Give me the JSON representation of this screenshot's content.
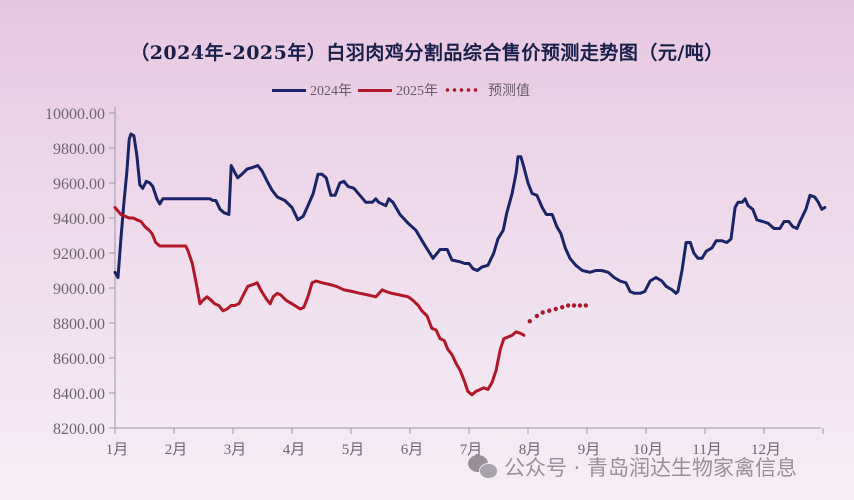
{
  "title": "（2024年-2025年）白羽肉鸡分割品综合售价预测走势图（元/吨）",
  "legend": [
    {
      "label": "2024年",
      "color": "#1a2466",
      "style": "solid"
    },
    {
      "label": "2025年",
      "color": "#b0182a",
      "style": "solid"
    },
    {
      "label": "预测值",
      "color": "#a8182a",
      "style": "dotted"
    }
  ],
  "watermark": "公众号 · 青岛润达生物家禽信息",
  "chart_data": {
    "type": "line",
    "title": "（2024年-2025年）白羽肉鸡分割品综合售价预测走势图（元/吨）",
    "xlabel": "",
    "ylabel": "元/吨",
    "ylim": [
      8200,
      10000
    ],
    "yticks": [
      "10000.00",
      "9800.00",
      "9600.00",
      "9400.00",
      "9200.00",
      "9000.00",
      "8800.00",
      "8600.00",
      "8400.00",
      "8200.00"
    ],
    "yticks_values": [
      10000,
      9800,
      9600,
      9400,
      9200,
      9000,
      8800,
      8600,
      8400,
      8200
    ],
    "categories": [
      "1月",
      "2月",
      "3月",
      "4月",
      "5月",
      "6月",
      "7月",
      "8月",
      "9月",
      "10月",
      "11月",
      "12月"
    ],
    "xlim": [
      1,
      13
    ],
    "grid": false,
    "legend_position": "top",
    "series": [
      {
        "name": "2024年",
        "color": "#1a2466",
        "style": "solid",
        "points": [
          [
            1.0,
            9090
          ],
          [
            1.05,
            9060
          ],
          [
            1.1,
            9280
          ],
          [
            1.15,
            9480
          ],
          [
            1.2,
            9660
          ],
          [
            1.24,
            9850
          ],
          [
            1.27,
            9880
          ],
          [
            1.32,
            9870
          ],
          [
            1.37,
            9760
          ],
          [
            1.42,
            9590
          ],
          [
            1.47,
            9570
          ],
          [
            1.53,
            9610
          ],
          [
            1.59,
            9600
          ],
          [
            1.64,
            9580
          ],
          [
            1.71,
            9510
          ],
          [
            1.76,
            9480
          ],
          [
            1.81,
            9510
          ],
          [
            2.61,
            9510
          ],
          [
            2.66,
            9500
          ],
          [
            2.71,
            9500
          ],
          [
            2.78,
            9450
          ],
          [
            2.85,
            9430
          ],
          [
            2.93,
            9420
          ],
          [
            2.97,
            9700
          ],
          [
            3.03,
            9660
          ],
          [
            3.08,
            9630
          ],
          [
            3.15,
            9650
          ],
          [
            3.24,
            9680
          ],
          [
            3.34,
            9690
          ],
          [
            3.42,
            9700
          ],
          [
            3.49,
            9670
          ],
          [
            3.58,
            9610
          ],
          [
            3.66,
            9560
          ],
          [
            3.75,
            9520
          ],
          [
            3.88,
            9500
          ],
          [
            4.0,
            9460
          ],
          [
            4.1,
            9390
          ],
          [
            4.19,
            9410
          ],
          [
            4.27,
            9470
          ],
          [
            4.36,
            9540
          ],
          [
            4.44,
            9650
          ],
          [
            4.51,
            9650
          ],
          [
            4.58,
            9630
          ],
          [
            4.66,
            9530
          ],
          [
            4.73,
            9530
          ],
          [
            4.81,
            9600
          ],
          [
            4.88,
            9610
          ],
          [
            4.95,
            9580
          ],
          [
            5.05,
            9570
          ],
          [
            5.15,
            9530
          ],
          [
            5.25,
            9490
          ],
          [
            5.36,
            9490
          ],
          [
            5.42,
            9510
          ],
          [
            5.47,
            9490
          ],
          [
            5.59,
            9470
          ],
          [
            5.64,
            9510
          ],
          [
            5.71,
            9490
          ],
          [
            5.83,
            9420
          ],
          [
            5.97,
            9370
          ],
          [
            6.1,
            9330
          ],
          [
            6.24,
            9250
          ],
          [
            6.39,
            9170
          ],
          [
            6.51,
            9220
          ],
          [
            6.63,
            9220
          ],
          [
            6.71,
            9160
          ],
          [
            6.85,
            9150
          ],
          [
            6.93,
            9140
          ],
          [
            7.0,
            9140
          ],
          [
            7.07,
            9110
          ],
          [
            7.14,
            9100
          ],
          [
            7.22,
            9120
          ],
          [
            7.32,
            9130
          ],
          [
            7.42,
            9200
          ],
          [
            7.49,
            9280
          ],
          [
            7.58,
            9330
          ],
          [
            7.64,
            9430
          ],
          [
            7.73,
            9540
          ],
          [
            7.8,
            9660
          ],
          [
            7.83,
            9750
          ],
          [
            7.88,
            9750
          ],
          [
            7.93,
            9690
          ],
          [
            8.0,
            9600
          ],
          [
            8.07,
            9540
          ],
          [
            8.15,
            9530
          ],
          [
            8.24,
            9460
          ],
          [
            8.31,
            9420
          ],
          [
            8.41,
            9420
          ],
          [
            8.49,
            9350
          ],
          [
            8.56,
            9310
          ],
          [
            8.63,
            9230
          ],
          [
            8.71,
            9170
          ],
          [
            8.81,
            9130
          ],
          [
            8.92,
            9100
          ],
          [
            9.05,
            9090
          ],
          [
            9.15,
            9100
          ],
          [
            9.25,
            9100
          ],
          [
            9.36,
            9090
          ],
          [
            9.46,
            9060
          ],
          [
            9.56,
            9040
          ],
          [
            9.66,
            9030
          ],
          [
            9.73,
            8980
          ],
          [
            9.8,
            8970
          ],
          [
            9.9,
            8970
          ],
          [
            9.98,
            8980
          ],
          [
            10.07,
            9040
          ],
          [
            10.17,
            9060
          ],
          [
            10.27,
            9040
          ],
          [
            10.34,
            9010
          ],
          [
            10.44,
            8990
          ],
          [
            10.51,
            8970
          ],
          [
            10.54,
            8980
          ],
          [
            10.61,
            9100
          ],
          [
            10.68,
            9260
          ],
          [
            10.75,
            9260
          ],
          [
            10.81,
            9200
          ],
          [
            10.88,
            9170
          ],
          [
            10.95,
            9170
          ],
          [
            11.02,
            9210
          ],
          [
            11.12,
            9230
          ],
          [
            11.19,
            9270
          ],
          [
            11.29,
            9270
          ],
          [
            11.37,
            9260
          ],
          [
            11.44,
            9280
          ],
          [
            11.51,
            9460
          ],
          [
            11.56,
            9490
          ],
          [
            11.63,
            9490
          ],
          [
            11.68,
            9510
          ],
          [
            11.73,
            9470
          ],
          [
            11.81,
            9450
          ],
          [
            11.88,
            9390
          ],
          [
            11.98,
            9380
          ],
          [
            12.07,
            9370
          ],
          [
            12.17,
            9340
          ],
          [
            12.27,
            9340
          ],
          [
            12.34,
            9380
          ],
          [
            12.42,
            9380
          ],
          [
            12.49,
            9350
          ],
          [
            12.56,
            9340
          ],
          [
            12.61,
            9380
          ],
          [
            12.71,
            9450
          ],
          [
            12.78,
            9530
          ],
          [
            12.86,
            9520
          ],
          [
            12.92,
            9490
          ],
          [
            12.98,
            9450
          ],
          [
            13.03,
            9460
          ]
        ]
      },
      {
        "name": "2025年",
        "color": "#b0182a",
        "style": "solid",
        "points": [
          [
            1.0,
            9460
          ],
          [
            1.05,
            9440
          ],
          [
            1.1,
            9420
          ],
          [
            1.17,
            9410
          ],
          [
            1.24,
            9400
          ],
          [
            1.31,
            9400
          ],
          [
            1.37,
            9390
          ],
          [
            1.44,
            9380
          ],
          [
            1.51,
            9350
          ],
          [
            1.58,
            9330
          ],
          [
            1.63,
            9310
          ],
          [
            1.69,
            9260
          ],
          [
            1.76,
            9240
          ],
          [
            2.1,
            9240
          ],
          [
            2.2,
            9240
          ],
          [
            2.24,
            9210
          ],
          [
            2.31,
            9140
          ],
          [
            2.37,
            9040
          ],
          [
            2.44,
            8910
          ],
          [
            2.49,
            8930
          ],
          [
            2.56,
            8950
          ],
          [
            2.63,
            8930
          ],
          [
            2.69,
            8910
          ],
          [
            2.76,
            8900
          ],
          [
            2.83,
            8870
          ],
          [
            2.9,
            8880
          ],
          [
            2.97,
            8900
          ],
          [
            3.03,
            8900
          ],
          [
            3.1,
            8910
          ],
          [
            3.19,
            8970
          ],
          [
            3.25,
            9010
          ],
          [
            3.34,
            9020
          ],
          [
            3.41,
            9030
          ],
          [
            3.47,
            8990
          ],
          [
            3.56,
            8940
          ],
          [
            3.63,
            8910
          ],
          [
            3.68,
            8950
          ],
          [
            3.75,
            8970
          ],
          [
            3.81,
            8960
          ],
          [
            3.9,
            8930
          ],
          [
            4.0,
            8910
          ],
          [
            4.14,
            8880
          ],
          [
            4.2,
            8890
          ],
          [
            4.27,
            8950
          ],
          [
            4.34,
            9030
          ],
          [
            4.41,
            9040
          ],
          [
            4.51,
            9030
          ],
          [
            4.64,
            9020
          ],
          [
            4.75,
            9010
          ],
          [
            4.88,
            8990
          ],
          [
            5.02,
            8980
          ],
          [
            5.15,
            8970
          ],
          [
            5.29,
            8960
          ],
          [
            5.42,
            8950
          ],
          [
            5.53,
            8990
          ],
          [
            5.59,
            8980
          ],
          [
            5.69,
            8970
          ],
          [
            5.83,
            8960
          ],
          [
            5.97,
            8950
          ],
          [
            6.05,
            8930
          ],
          [
            6.14,
            8900
          ],
          [
            6.2,
            8870
          ],
          [
            6.29,
            8840
          ],
          [
            6.37,
            8770
          ],
          [
            6.44,
            8760
          ],
          [
            6.51,
            8710
          ],
          [
            6.58,
            8700
          ],
          [
            6.64,
            8650
          ],
          [
            6.71,
            8620
          ],
          [
            6.78,
            8570
          ],
          [
            6.85,
            8530
          ],
          [
            6.92,
            8470
          ],
          [
            6.98,
            8410
          ],
          [
            7.05,
            8390
          ],
          [
            7.12,
            8410
          ],
          [
            7.19,
            8420
          ],
          [
            7.25,
            8430
          ],
          [
            7.32,
            8420
          ],
          [
            7.39,
            8460
          ],
          [
            7.46,
            8530
          ],
          [
            7.53,
            8650
          ],
          [
            7.59,
            8710
          ],
          [
            7.66,
            8720
          ],
          [
            7.73,
            8730
          ],
          [
            7.8,
            8750
          ],
          [
            7.88,
            8740
          ],
          [
            7.93,
            8730
          ]
        ]
      },
      {
        "name": "预测值",
        "color": "#a8182a",
        "style": "dotted",
        "points": [
          [
            8.03,
            8810
          ],
          [
            8.15,
            8840
          ],
          [
            8.25,
            8860
          ],
          [
            8.36,
            8870
          ],
          [
            8.47,
            8880
          ],
          [
            8.58,
            8890
          ],
          [
            8.68,
            8900
          ],
          [
            8.78,
            8900
          ],
          [
            8.88,
            8900
          ],
          [
            8.98,
            8900
          ]
        ]
      }
    ]
  }
}
